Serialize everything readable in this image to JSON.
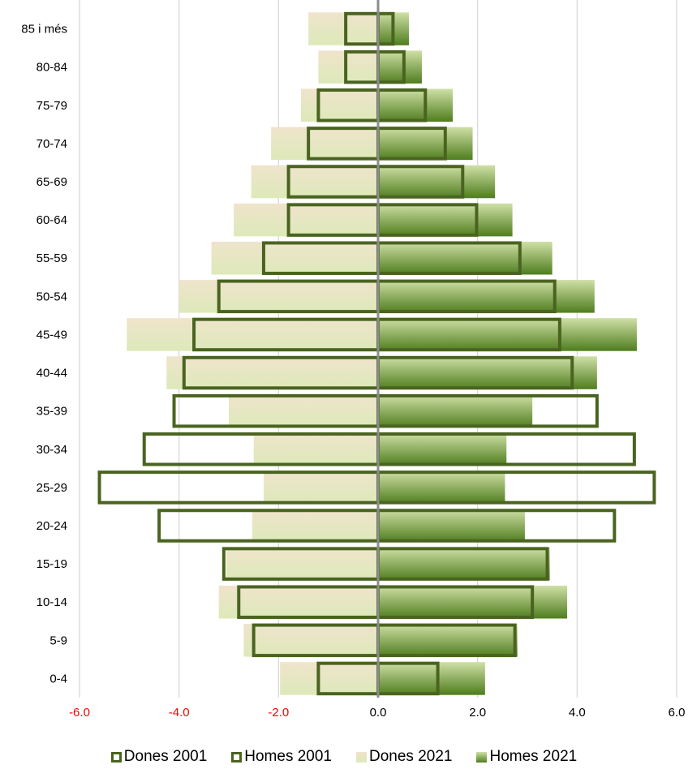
{
  "chart_data": {
    "type": "bar",
    "orientation": "horizontal",
    "categories": [
      "0-4",
      "5-9",
      "10-14",
      "15-19",
      "20-24",
      "25-29",
      "30-34",
      "35-39",
      "40-44",
      "45-49",
      "50-54",
      "55-59",
      "60-64",
      "65-69",
      "70-74",
      "75-79",
      "80-84",
      "85 i més"
    ],
    "series": [
      {
        "name": "Dones 2001",
        "style": "outline",
        "values": [
          -1.2,
          -2.5,
          -2.8,
          -3.1,
          -4.4,
          -5.6,
          -4.7,
          -4.1,
          -3.9,
          -3.7,
          -3.2,
          -2.3,
          -1.8,
          -1.8,
          -1.4,
          -1.2,
          -0.65,
          -0.65
        ]
      },
      {
        "name": "Homes 2001",
        "style": "outline",
        "values": [
          1.2,
          2.75,
          3.1,
          3.4,
          4.75,
          5.55,
          5.15,
          4.4,
          3.9,
          3.65,
          3.55,
          2.85,
          1.98,
          1.7,
          1.35,
          0.95,
          0.52,
          0.3
        ]
      },
      {
        "name": "Dones 2021",
        "style": "fill",
        "values": [
          -1.97,
          -2.7,
          -3.2,
          -3.05,
          -2.53,
          -2.3,
          -2.5,
          -3.0,
          -4.25,
          -5.05,
          -4.0,
          -3.35,
          -2.9,
          -2.55,
          -2.15,
          -1.55,
          -1.2,
          -1.4
        ]
      },
      {
        "name": "Homes 2021",
        "style": "fill",
        "values": [
          2.15,
          2.8,
          3.8,
          3.45,
          2.95,
          2.55,
          2.58,
          3.1,
          4.4,
          5.2,
          4.35,
          3.5,
          2.7,
          2.35,
          1.9,
          1.5,
          0.88,
          0.62
        ]
      }
    ],
    "xlim": [
      -6.0,
      6.0
    ],
    "x_ticks": [
      "-6.0",
      "-4.0",
      "-2.0",
      "0.0",
      "2.0",
      "4.0",
      "6.0"
    ],
    "x_tick_values": [
      -6,
      -4,
      -2,
      0,
      2,
      4,
      6
    ],
    "grid": "vertical",
    "legend_position": "bottom",
    "title": "",
    "xlabel": "",
    "ylabel": ""
  },
  "colors": {
    "outline": "#4a6420",
    "dones_fill_top": "#efe4cc",
    "dones_fill_bottom": "#dde9b9",
    "homes_fill_top": "#cfe0a6",
    "homes_fill_bottom": "#4f7d1e",
    "negative_tick": "#ff0000",
    "positive_tick": "#000000",
    "grid": "#d9d9d9",
    "axis": "#8c8c8c"
  }
}
